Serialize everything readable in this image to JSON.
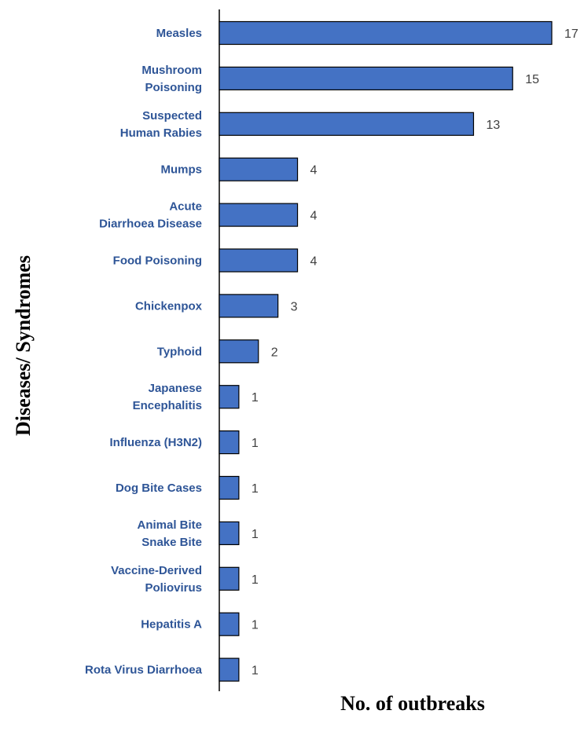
{
  "chart_data": {
    "type": "bar",
    "orientation": "horizontal",
    "categories": [
      [
        "Measles"
      ],
      [
        "Mushroom",
        "Poisoning"
      ],
      [
        "Suspected",
        "Human Rabies"
      ],
      [
        "Mumps"
      ],
      [
        "Acute",
        "Diarrhoea Disease"
      ],
      [
        "Food Poisoning"
      ],
      [
        "Chickenpox"
      ],
      [
        "Typhoid"
      ],
      [
        "Japanese",
        "Encephalitis"
      ],
      [
        "Influenza (H3N2)"
      ],
      [
        "Dog Bite Cases"
      ],
      [
        "Animal Bite",
        "Snake Bite"
      ],
      [
        "Vaccine-Derived",
        "Poliovirus"
      ],
      [
        "Hepatitis A"
      ],
      [
        "Rota Virus Diarrhoea"
      ]
    ],
    "values": [
      17,
      15,
      13,
      4,
      4,
      4,
      3,
      2,
      1,
      1,
      1,
      1,
      1,
      1,
      1
    ],
    "xlabel": "No. of outbreaks",
    "ylabel": "Diseases/ Syndromes",
    "xlim": [
      0,
      17
    ],
    "data_labels": true,
    "grid": false,
    "colors": {
      "bar": "#4472c4",
      "bar_stroke": "#000000",
      "category_text": "#2e5597",
      "value_text": "#404040"
    }
  }
}
